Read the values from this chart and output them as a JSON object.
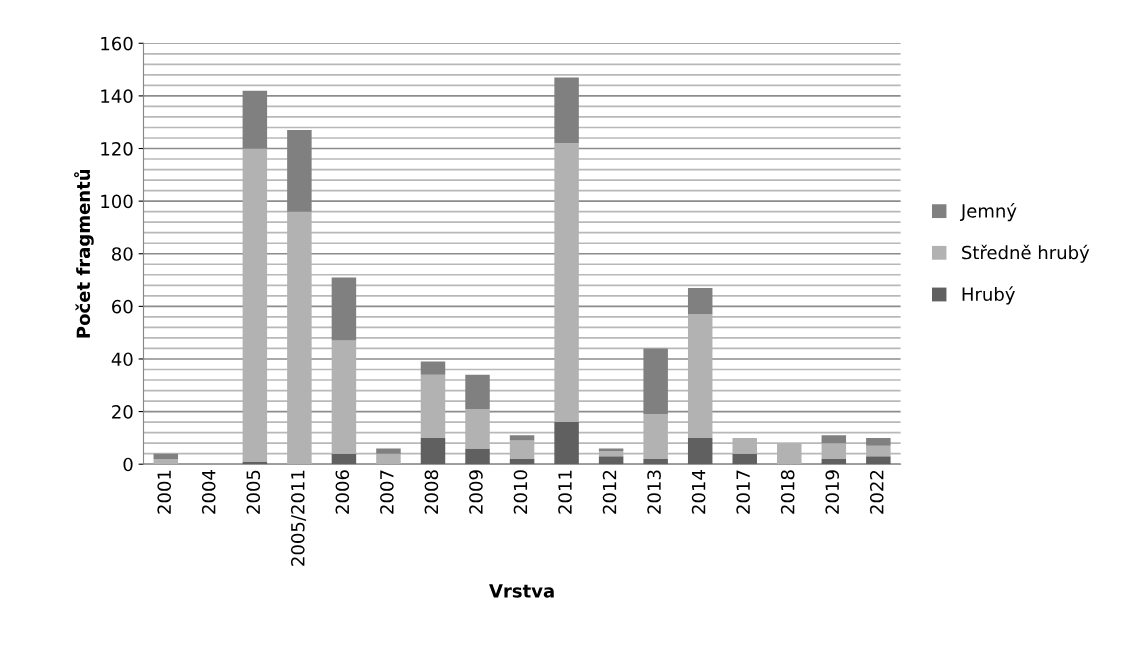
{
  "chart_data": {
    "type": "bar",
    "stacked": true,
    "xlabel": "Vrstva",
    "ylabel": "Počet fragmentů",
    "categories": [
      "2001",
      "2004",
      "2005",
      "2005/2011",
      "2006",
      "2007",
      "2008",
      "2009",
      "2010",
      "2011",
      "2012",
      "2013",
      "2014",
      "2017",
      "2018",
      "2019",
      "2022"
    ],
    "series": [
      {
        "name": "Hrubý",
        "color": "#606060",
        "values": [
          0,
          0,
          1,
          0,
          4,
          0,
          10,
          6,
          2,
          16,
          3,
          2,
          10,
          4,
          0,
          2,
          3
        ]
      },
      {
        "name": "Středně hrubý",
        "color": "#b2b2b2",
        "values": [
          2,
          0,
          119,
          96,
          43,
          4,
          24,
          15,
          7,
          106,
          2,
          17,
          47,
          6,
          8,
          6,
          4
        ]
      },
      {
        "name": "Jemný",
        "color": "#808080",
        "values": [
          2,
          0,
          22,
          31,
          24,
          2,
          5,
          13,
          2,
          25,
          1,
          25,
          10,
          0,
          0,
          3,
          3
        ]
      }
    ],
    "ylim": [
      0,
      160
    ],
    "yticks": [
      0,
      20,
      40,
      60,
      80,
      100,
      120,
      140,
      160
    ],
    "grid": "y",
    "legend": "right"
  }
}
